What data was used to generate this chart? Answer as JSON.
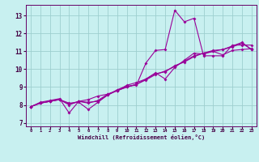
{
  "xlabel": "Windchill (Refroidissement éolien,°C)",
  "xlim": [
    -0.5,
    23.5
  ],
  "ylim": [
    6.8,
    13.6
  ],
  "yticks": [
    7,
    8,
    9,
    10,
    11,
    12,
    13
  ],
  "xticks": [
    0,
    1,
    2,
    3,
    4,
    5,
    6,
    7,
    8,
    9,
    10,
    11,
    12,
    13,
    14,
    15,
    16,
    17,
    18,
    19,
    20,
    21,
    22,
    23
  ],
  "background_color": "#c8f0f0",
  "grid_color": "#9ecfcf",
  "line_color": "#990099",
  "series_x": [
    0,
    1,
    2,
    3,
    4,
    5,
    6,
    7,
    8,
    9,
    10,
    11,
    12,
    13,
    14,
    15,
    16,
    17,
    18,
    19,
    20,
    21,
    22,
    23
  ],
  "s1_y": [
    7.9,
    8.1,
    8.2,
    8.3,
    8.05,
    8.2,
    8.1,
    8.25,
    8.6,
    8.8,
    9.0,
    9.15,
    9.45,
    9.75,
    9.85,
    10.2,
    10.4,
    10.7,
    10.9,
    11.05,
    11.1,
    11.3,
    11.5,
    11.1
  ],
  "s2_y": [
    7.9,
    8.15,
    8.25,
    8.35,
    7.55,
    8.2,
    8.3,
    8.5,
    8.6,
    8.8,
    9.1,
    9.25,
    9.45,
    9.8,
    9.45,
    10.1,
    10.5,
    10.9,
    10.85,
    11.0,
    10.8,
    11.05,
    11.1,
    11.15
  ],
  "s3_y": [
    7.9,
    8.1,
    8.2,
    8.3,
    8.1,
    8.15,
    7.75,
    8.15,
    8.55,
    8.85,
    9.05,
    9.1,
    10.35,
    11.05,
    11.1,
    13.3,
    12.65,
    12.85,
    10.75,
    10.75,
    10.75,
    11.35,
    11.35,
    11.35
  ],
  "s4_y": [
    7.9,
    8.1,
    8.2,
    8.3,
    8.0,
    8.2,
    8.15,
    8.2,
    8.55,
    8.8,
    9.0,
    9.15,
    9.4,
    9.7,
    9.9,
    10.15,
    10.45,
    10.75,
    10.9,
    11.0,
    11.1,
    11.25,
    11.45,
    11.1
  ]
}
